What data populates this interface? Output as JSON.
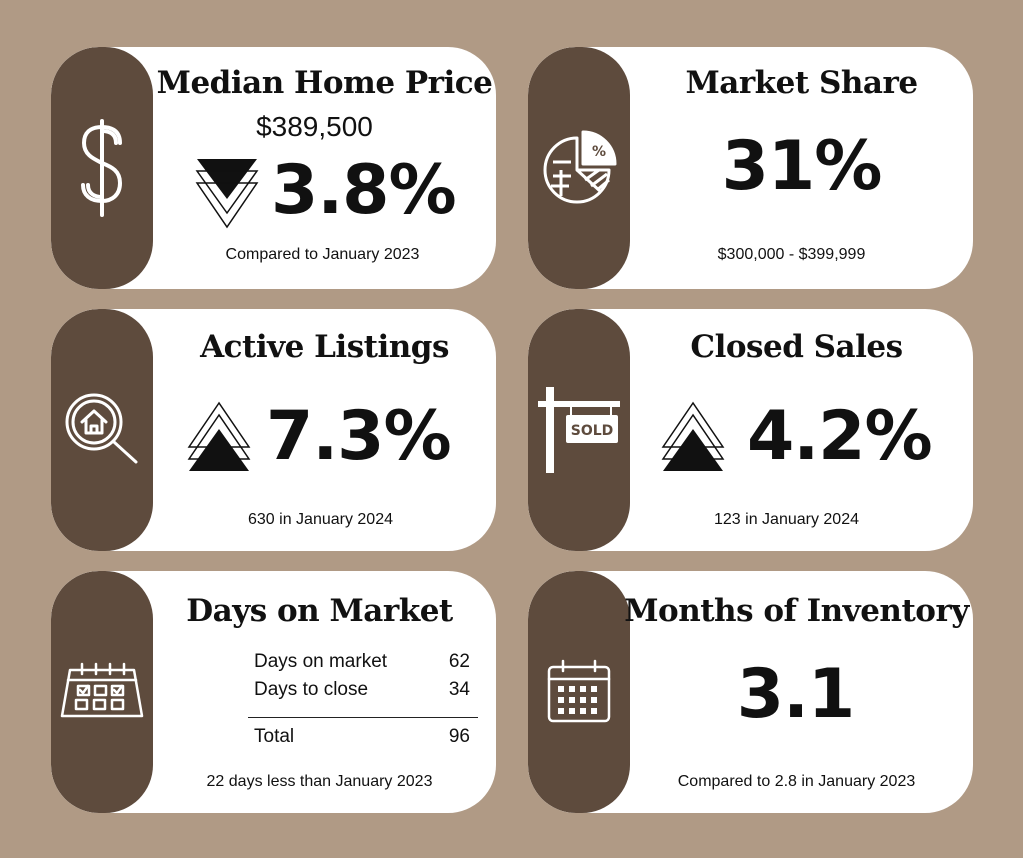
{
  "background_color": "#b09a85",
  "accent_color": "#5e4b3d",
  "cards": {
    "median_price": {
      "icon": "dollar-sign-icon",
      "title": "Median Home Price",
      "price": "$389,500",
      "trend": "down",
      "change": "3.8%",
      "subtitle": "Compared to January 2023"
    },
    "market_share": {
      "icon": "pie-chart-percent-icon",
      "title": "Market Share",
      "value": "31%",
      "subtitle": "$300,000 - $399,999"
    },
    "active_listings": {
      "icon": "house-search-icon",
      "title": "Active Listings",
      "trend": "up",
      "change": "7.3%",
      "subtitle": "630 in January 2024"
    },
    "closed_sales": {
      "icon": "sold-sign-icon",
      "sign_text": "SOLD",
      "title": "Closed Sales",
      "trend": "up",
      "change": "4.2%",
      "subtitle": "123 in January 2024"
    },
    "days_on_market": {
      "icon": "calendar-check-icon",
      "title": "Days on Market",
      "rows": [
        {
          "label": "Days on market",
          "value": "62"
        },
        {
          "label": "Days to close",
          "value": "34"
        }
      ],
      "total": {
        "label": "Total",
        "value": "96"
      },
      "subtitle": "22 days less than January 2023"
    },
    "months_inventory": {
      "icon": "calendar-icon",
      "title": "Months of Inventory",
      "value": "3.1",
      "subtitle": "Compared to 2.8 in January 2023"
    }
  }
}
